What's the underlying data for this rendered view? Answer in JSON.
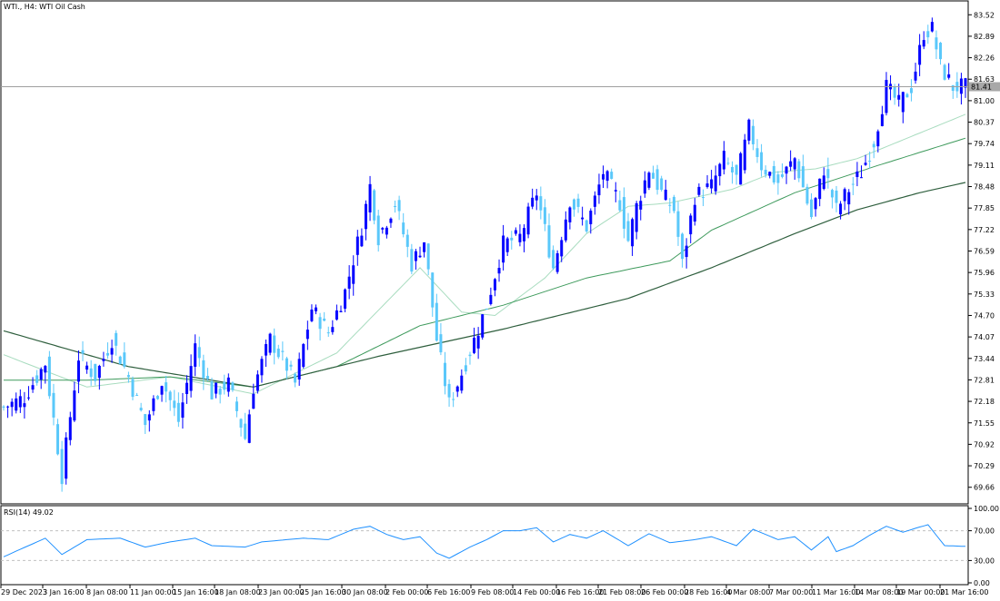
{
  "chart_data": {
    "type": "candlestick",
    "title": "WTI., H4:  WTI Oil Cash",
    "symbol": "WTI.",
    "timeframe": "H4",
    "instrument": "WTI Oil Cash",
    "current_price": 81.41,
    "price_ticks": [
      "83.52",
      "82.89",
      "82.26",
      "81.63",
      "81.00",
      "80.37",
      "79.74",
      "79.11",
      "78.48",
      "77.85",
      "77.22",
      "76.59",
      "75.96",
      "75.33",
      "74.70",
      "74.07",
      "73.44",
      "72.81",
      "72.18",
      "71.55",
      "70.92",
      "70.29",
      "69.66"
    ],
    "price_range": [
      69.2,
      83.9
    ],
    "x_labels": [
      "29 Dec 2023",
      "3 Jan 16:00",
      "8 Jan 08:00",
      "11 Jan 00:00",
      "15 Jan 16:00",
      "18 Jan 08:00",
      "23 Jan 00:00",
      "25 Jan 16:00",
      "30 Jan 08:00",
      "2 Feb 00:00",
      "6 Feb 16:00",
      "9 Feb 08:00",
      "14 Feb 00:00",
      "16 Feb 16:00",
      "21 Feb 08:00",
      "26 Feb 00:00",
      "28 Feb 16:00",
      "4 Mar 08:00",
      "7 Mar 00:00",
      "11 Mar 16:00",
      "14 Mar 08:00",
      "19 Mar 00:00",
      "21 Mar 16:00"
    ],
    "bull_color": "#0000ff",
    "bear_color": "#5ac8fa",
    "close_anchors": [
      [
        0,
        72.0
      ],
      [
        5,
        72.3
      ],
      [
        10,
        73.3
      ],
      [
        14,
        70.0
      ],
      [
        18,
        73.5
      ],
      [
        22,
        72.9
      ],
      [
        26,
        74.0
      ],
      [
        30,
        72.9
      ],
      [
        34,
        71.5
      ],
      [
        38,
        72.8
      ],
      [
        42,
        71.6
      ],
      [
        46,
        73.8
      ],
      [
        50,
        72.4
      ],
      [
        54,
        72.7
      ],
      [
        58,
        71.1
      ],
      [
        60,
        72.6
      ],
      [
        64,
        74.0
      ],
      [
        68,
        73.2
      ],
      [
        70,
        72.7
      ],
      [
        74,
        74.9
      ],
      [
        78,
        74.2
      ],
      [
        82,
        75.4
      ],
      [
        86,
        77.3
      ],
      [
        88,
        78.5
      ],
      [
        90,
        77.0
      ],
      [
        94,
        78.0
      ],
      [
        98,
        76.2
      ],
      [
        101,
        76.9
      ],
      [
        104,
        74.0
      ],
      [
        107,
        72.1
      ],
      [
        110,
        73.0
      ],
      [
        114,
        74.3
      ],
      [
        116,
        75.0
      ],
      [
        120,
        76.8
      ],
      [
        124,
        77.0
      ],
      [
        128,
        78.3
      ],
      [
        132,
        76.1
      ],
      [
        136,
        78.1
      ],
      [
        140,
        77.3
      ],
      [
        144,
        78.9
      ],
      [
        148,
        78.0
      ],
      [
        150,
        76.9
      ],
      [
        152,
        77.9
      ],
      [
        155,
        79.0
      ],
      [
        158,
        78.3
      ],
      [
        161,
        77.8
      ],
      [
        163,
        76.2
      ],
      [
        166,
        78.2
      ],
      [
        170,
        78.5
      ],
      [
        173,
        79.3
      ],
      [
        176,
        78.7
      ],
      [
        179,
        80.2
      ],
      [
        182,
        79.1
      ],
      [
        186,
        78.6
      ],
      [
        190,
        79.3
      ],
      [
        194,
        77.6
      ],
      [
        197,
        79.0
      ],
      [
        200,
        77.8
      ],
      [
        203,
        78.4
      ],
      [
        206,
        78.9
      ],
      [
        209,
        79.8
      ],
      [
        212,
        81.4
      ],
      [
        215,
        80.9
      ],
      [
        218,
        81.4
      ],
      [
        221,
        83.0
      ],
      [
        223,
        83.1
      ],
      [
        225,
        82.0
      ],
      [
        228,
        81.4
      ],
      [
        231,
        81.4
      ]
    ],
    "ma_fast_anchors": [
      [
        0,
        73.55
      ],
      [
        20,
        72.6
      ],
      [
        40,
        72.9
      ],
      [
        60,
        72.4
      ],
      [
        80,
        73.6
      ],
      [
        100,
        76.1
      ],
      [
        110,
        74.8
      ],
      [
        118,
        74.7
      ],
      [
        130,
        75.8
      ],
      [
        140,
        77.1
      ],
      [
        150,
        77.9
      ],
      [
        160,
        78.0
      ],
      [
        175,
        78.4
      ],
      [
        185,
        78.9
      ],
      [
        195,
        79.0
      ],
      [
        205,
        79.3
      ],
      [
        215,
        79.8
      ],
      [
        231,
        80.6
      ]
    ],
    "ma_mid_anchors": [
      [
        0,
        72.8
      ],
      [
        20,
        72.8
      ],
      [
        40,
        72.9
      ],
      [
        60,
        72.6
      ],
      [
        80,
        73.2
      ],
      [
        100,
        74.4
      ],
      [
        120,
        75.0
      ],
      [
        140,
        75.8
      ],
      [
        160,
        76.3
      ],
      [
        170,
        77.2
      ],
      [
        190,
        78.3
      ],
      [
        210,
        79.1
      ],
      [
        231,
        79.9
      ]
    ],
    "ma_slow_anchors": [
      [
        0,
        74.25
      ],
      [
        30,
        73.2
      ],
      [
        60,
        72.6
      ],
      [
        90,
        73.5
      ],
      [
        120,
        74.3
      ],
      [
        150,
        75.2
      ],
      [
        170,
        76.1
      ],
      [
        190,
        77.1
      ],
      [
        205,
        77.8
      ],
      [
        220,
        78.3
      ],
      [
        231,
        78.6
      ]
    ],
    "rsi": {
      "label": "RSI(14) 49.02",
      "value": 49.02,
      "levels": [
        "100.00",
        "70.00",
        "30.00",
        "0.00"
      ],
      "anchors": [
        [
          0,
          35
        ],
        [
          10,
          60
        ],
        [
          14,
          38
        ],
        [
          20,
          58
        ],
        [
          28,
          60
        ],
        [
          34,
          48
        ],
        [
          40,
          55
        ],
        [
          46,
          60
        ],
        [
          50,
          50
        ],
        [
          58,
          48
        ],
        [
          62,
          55
        ],
        [
          66,
          57
        ],
        [
          72,
          60
        ],
        [
          78,
          58
        ],
        [
          84,
          72
        ],
        [
          88,
          76
        ],
        [
          92,
          65
        ],
        [
          96,
          58
        ],
        [
          100,
          62
        ],
        [
          104,
          40
        ],
        [
          107,
          33
        ],
        [
          112,
          48
        ],
        [
          116,
          58
        ],
        [
          120,
          70
        ],
        [
          124,
          70
        ],
        [
          128,
          74
        ],
        [
          132,
          55
        ],
        [
          136,
          65
        ],
        [
          140,
          60
        ],
        [
          144,
          70
        ],
        [
          150,
          50
        ],
        [
          155,
          66
        ],
        [
          160,
          54
        ],
        [
          166,
          58
        ],
        [
          170,
          62
        ],
        [
          176,
          50
        ],
        [
          180,
          72
        ],
        [
          186,
          58
        ],
        [
          190,
          62
        ],
        [
          194,
          44
        ],
        [
          198,
          62
        ],
        [
          200,
          42
        ],
        [
          204,
          50
        ],
        [
          208,
          64
        ],
        [
          212,
          76
        ],
        [
          216,
          68
        ],
        [
          220,
          75
        ],
        [
          222,
          78
        ],
        [
          226,
          50
        ],
        [
          231,
          49
        ]
      ]
    }
  },
  "legend": {
    "header": "WTI., H4:  WTI Oil Cash",
    "price_badge": "81.41"
  }
}
